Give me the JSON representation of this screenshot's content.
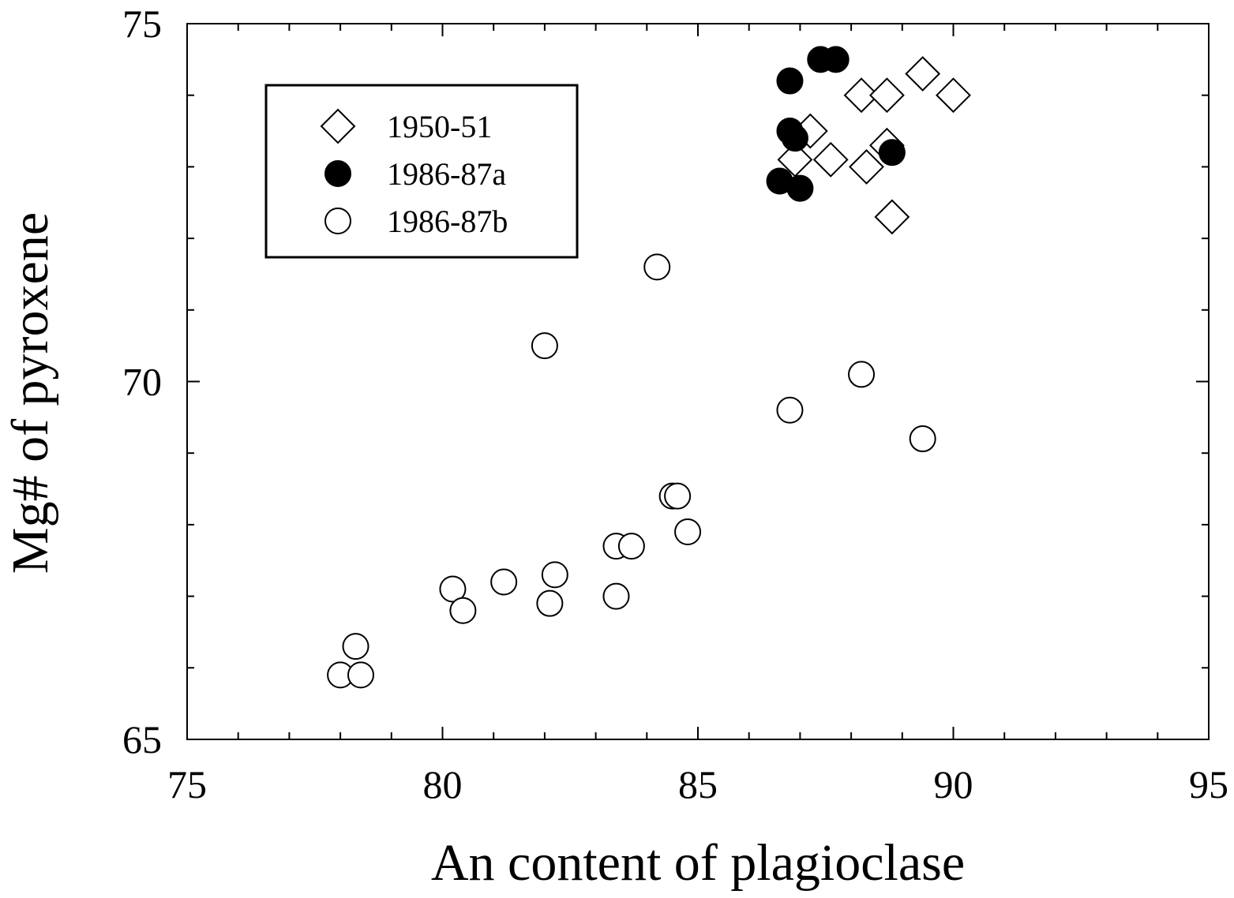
{
  "chart_data": {
    "type": "scatter",
    "title": "",
    "xlabel": "An content of plagioclase",
    "ylabel": "Mg# of pyroxene",
    "xlim": [
      75,
      95
    ],
    "ylim": [
      65,
      75
    ],
    "xticks": [
      75,
      80,
      85,
      90,
      95
    ],
    "yticks": [
      65,
      70,
      75
    ],
    "xtick_labels": [
      "75",
      "80",
      "85",
      "90",
      "95"
    ],
    "ytick_labels": [
      "65",
      "70",
      "75"
    ],
    "x_minor_step": 1,
    "y_minor_step": 1,
    "grid": false,
    "legend_position": "top-left",
    "series": [
      {
        "name": "1950-51",
        "marker": "diamond-open",
        "color": "#000000",
        "x": [
          89.4,
          90.0,
          88.2,
          88.7,
          87.2,
          86.9,
          87.6,
          88.7,
          88.3,
          88.8
        ],
        "y": [
          74.3,
          74.0,
          74.0,
          74.0,
          73.5,
          73.1,
          73.1,
          73.3,
          73.0,
          72.3
        ]
      },
      {
        "name": "1986-87a",
        "marker": "circle-filled",
        "color": "#000000",
        "x": [
          87.4,
          87.7,
          86.8,
          86.8,
          86.9,
          88.8,
          86.6,
          87.0
        ],
        "y": [
          74.5,
          74.5,
          74.2,
          73.5,
          73.4,
          73.2,
          72.8,
          72.7
        ]
      },
      {
        "name": "1986-87b",
        "marker": "circle-open",
        "color": "#000000",
        "x": [
          84.2,
          82.0,
          88.2,
          86.8,
          89.4,
          84.5,
          84.6,
          84.8,
          83.4,
          83.7,
          82.2,
          81.2,
          80.2,
          80.4,
          82.1,
          83.4,
          78.3,
          78.0,
          78.4
        ],
        "y": [
          71.6,
          70.5,
          70.1,
          69.6,
          69.2,
          68.4,
          68.4,
          67.9,
          67.7,
          67.7,
          67.3,
          67.2,
          67.1,
          66.8,
          66.9,
          67.0,
          66.3,
          65.9,
          65.9
        ]
      }
    ]
  }
}
